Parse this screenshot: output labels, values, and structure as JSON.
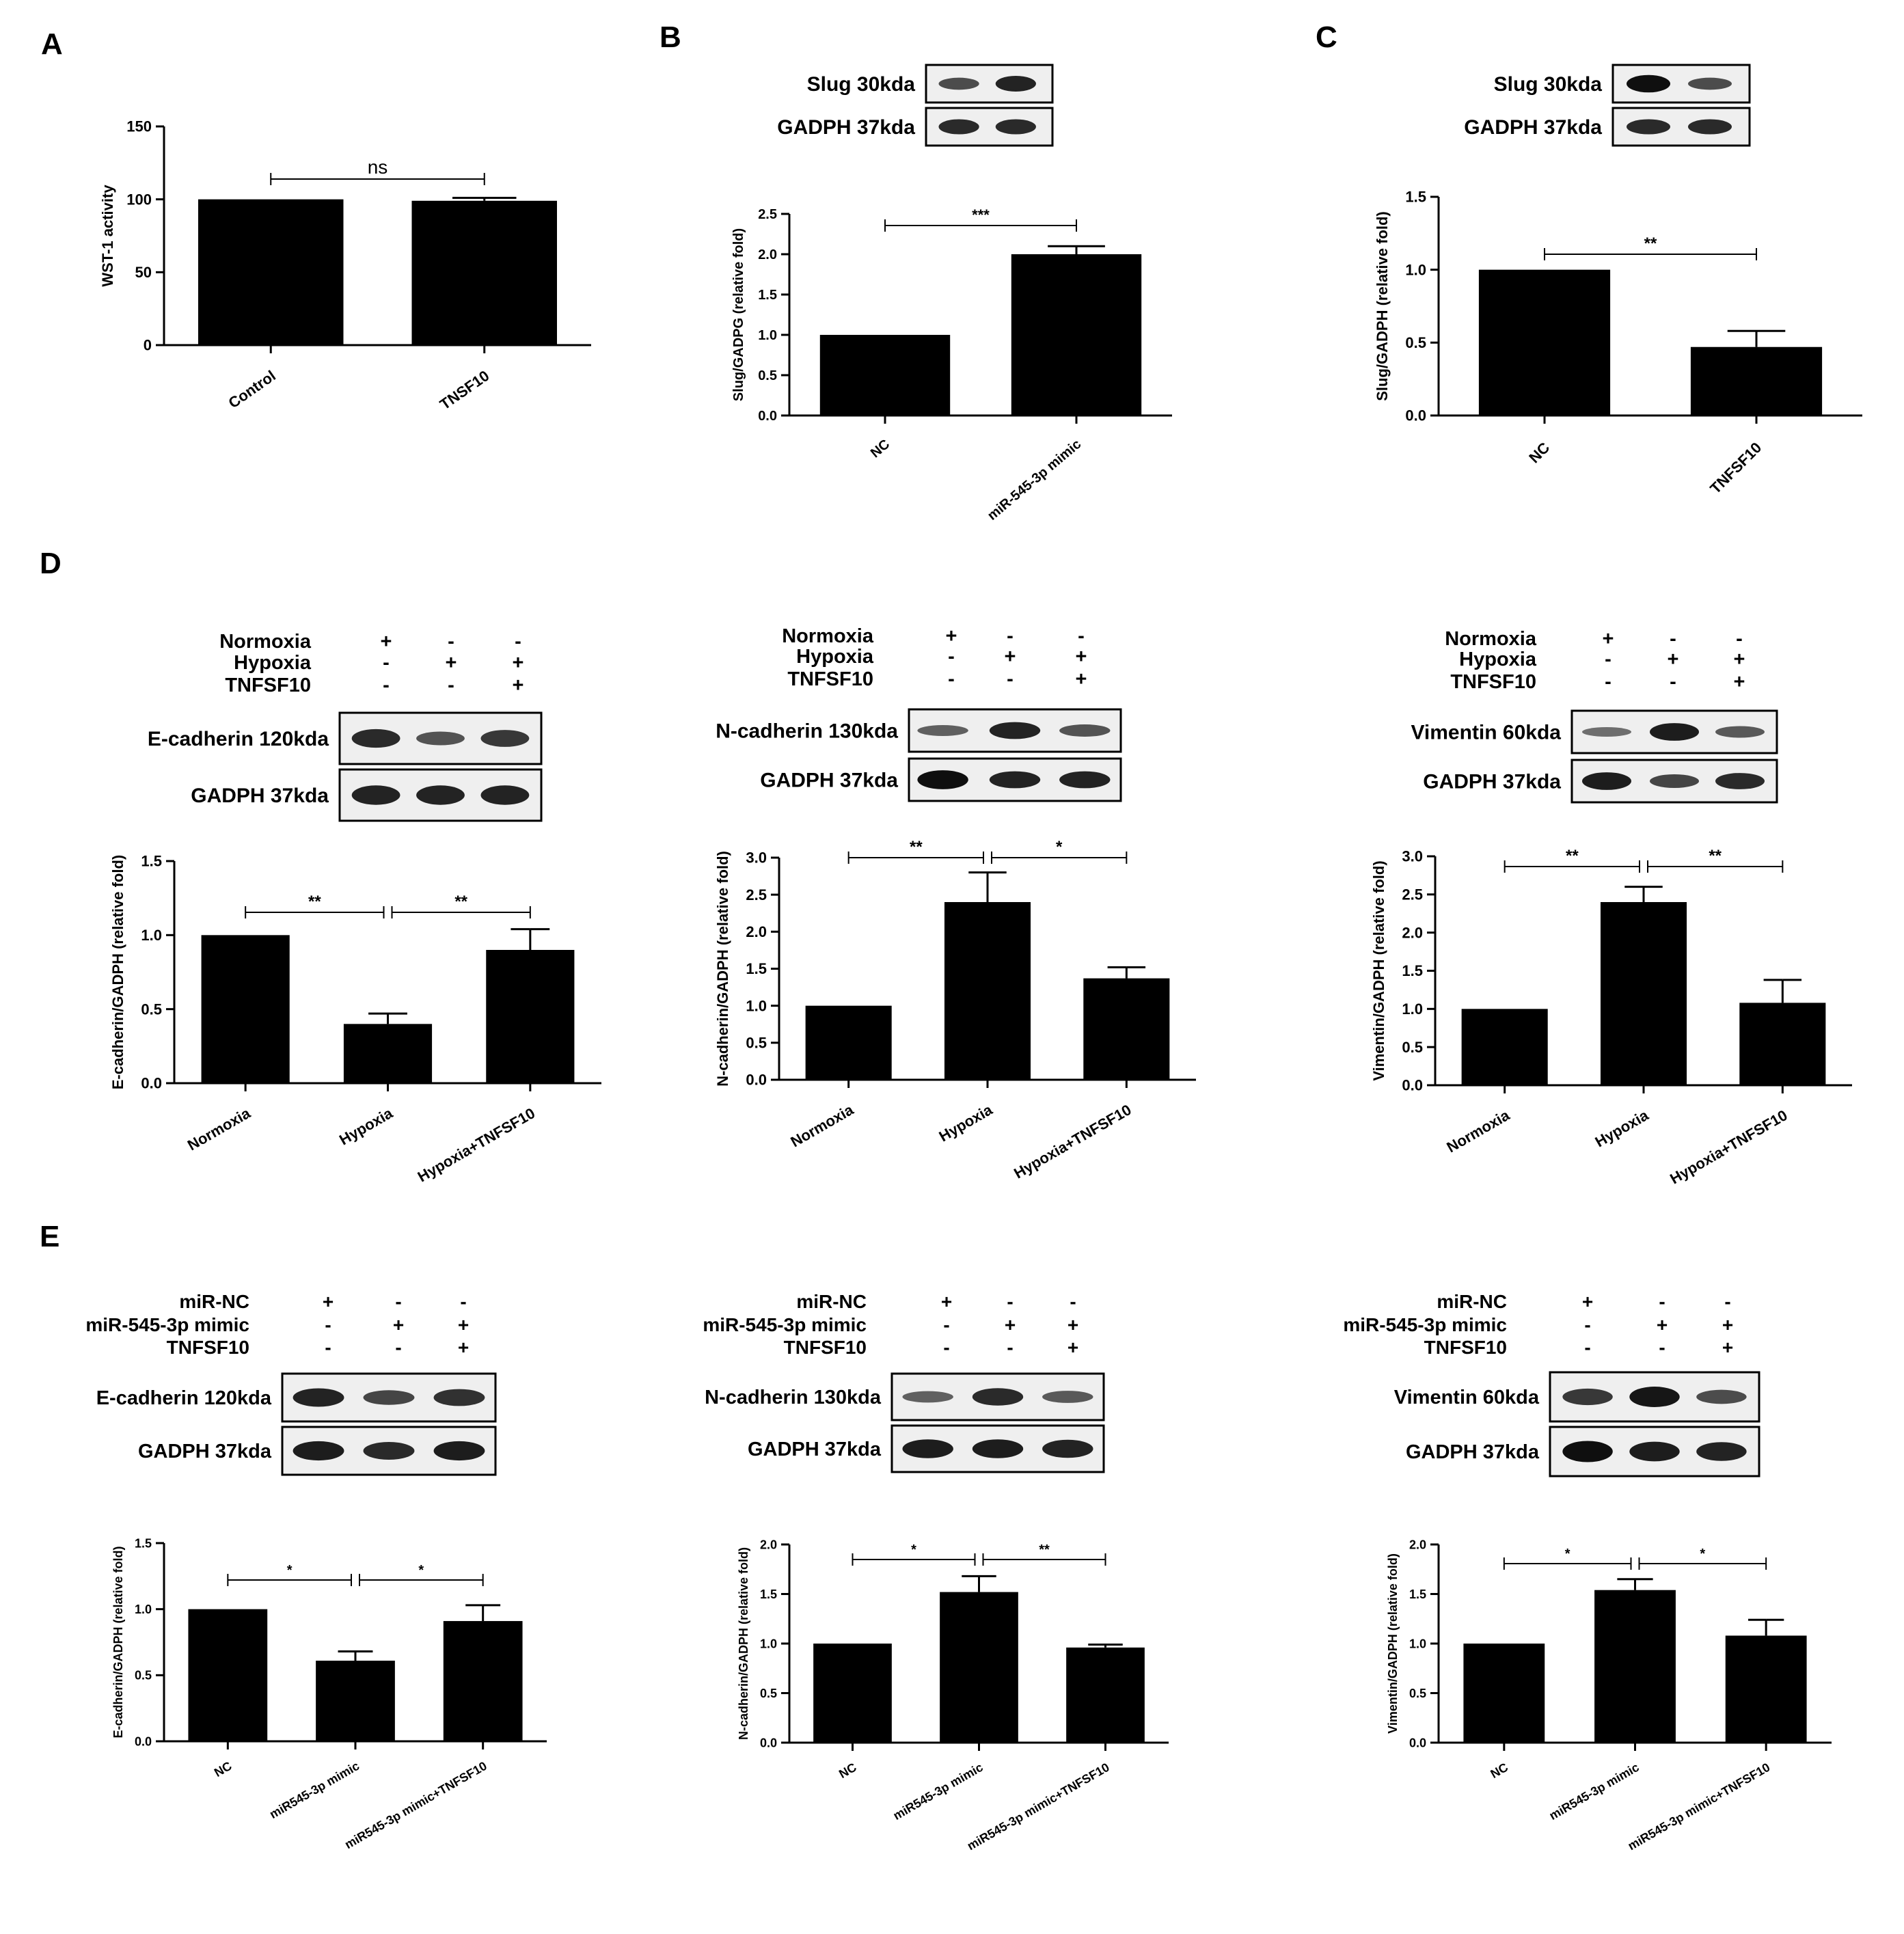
{
  "panels": {
    "A": "A",
    "B": "B",
    "C": "C",
    "D": "D",
    "E": "E"
  },
  "blots": [
    {
      "bands": [
        {
          "label": "Slug 30kda",
          "intensity": [
            0.55,
            0.85
          ]
        },
        {
          "label": "GADPH  37kda",
          "intensity": [
            0.8,
            0.8
          ]
        }
      ],
      "treatments": []
    },
    {
      "bands": [
        {
          "label": "Slug 30kda",
          "intensity": [
            1.0,
            0.55
          ]
        },
        {
          "label": "GADPH  37kda",
          "intensity": [
            0.8,
            0.8
          ]
        }
      ],
      "treatments": []
    },
    {
      "bands": [
        {
          "label": "E-cadherin  120kda",
          "intensity": [
            0.8,
            0.5,
            0.7
          ]
        },
        {
          "label": "GADPH  37kda",
          "intensity": [
            0.85,
            0.85,
            0.85
          ]
        }
      ],
      "treatments": [
        {
          "name": "Normoxia",
          "signs": [
            "+",
            "-",
            "-"
          ]
        },
        {
          "name": "Hypoxia",
          "signs": [
            "-",
            "+",
            "+"
          ]
        },
        {
          "name": "TNFSF10",
          "signs": [
            "-",
            "-",
            "+"
          ]
        }
      ]
    },
    {
      "bands": [
        {
          "label": "N-cadherin  130kda",
          "intensity": [
            0.4,
            0.85,
            0.5
          ]
        },
        {
          "label": "GADPH  37kda",
          "intensity": [
            1.0,
            0.85,
            0.85
          ]
        }
      ],
      "treatments": [
        {
          "name": "Normoxia",
          "signs": [
            "+",
            "-",
            "-"
          ]
        },
        {
          "name": "Hypoxia",
          "signs": [
            "-",
            "+",
            "+"
          ]
        },
        {
          "name": "TNFSF10",
          "signs": [
            "-",
            "-",
            "+"
          ]
        }
      ]
    },
    {
      "bands": [
        {
          "label": "Vimentin  60kda",
          "intensity": [
            0.3,
            0.9,
            0.45
          ]
        },
        {
          "label": "GADPH  37kda",
          "intensity": [
            0.9,
            0.6,
            0.8
          ]
        }
      ],
      "treatments": [
        {
          "name": "Normoxia",
          "signs": [
            "+",
            "-",
            "-"
          ]
        },
        {
          "name": "Hypoxia",
          "signs": [
            "-",
            "+",
            "+"
          ]
        },
        {
          "name": "TNFSF10",
          "signs": [
            "-",
            "-",
            "+"
          ]
        }
      ]
    },
    {
      "bands": [
        {
          "label": "E-cadherin  120kda",
          "intensity": [
            0.85,
            0.6,
            0.75
          ]
        },
        {
          "label": "GADPH  37kda",
          "intensity": [
            0.9,
            0.8,
            0.9
          ]
        }
      ],
      "treatments": [
        {
          "name": "miR-NC",
          "signs": [
            "+",
            "-",
            "-"
          ]
        },
        {
          "name": "miR-545-3p mimic",
          "signs": [
            "-",
            "+",
            "+"
          ]
        },
        {
          "name": "TNFSF10",
          "signs": [
            "-",
            "-",
            "+"
          ]
        }
      ]
    },
    {
      "bands": [
        {
          "label": "N-cadherin  130kda",
          "intensity": [
            0.4,
            0.8,
            0.45
          ]
        },
        {
          "label": "GADPH  37kda",
          "intensity": [
            0.9,
            0.9,
            0.85
          ]
        }
      ],
      "treatments": [
        {
          "name": "miR-NC",
          "signs": [
            "+",
            "-",
            "-"
          ]
        },
        {
          "name": "miR-545-3p mimic",
          "signs": [
            "-",
            "+",
            "+"
          ]
        },
        {
          "name": "TNFSF10",
          "signs": [
            "-",
            "-",
            "+"
          ]
        }
      ]
    },
    {
      "bands": [
        {
          "label": "Vimentin  60kda",
          "intensity": [
            0.7,
            0.95,
            0.55
          ]
        },
        {
          "label": "GADPH  37kda",
          "intensity": [
            1.0,
            0.9,
            0.85
          ]
        }
      ],
      "treatments": [
        {
          "name": "miR-NC",
          "signs": [
            "+",
            "-",
            "-"
          ]
        },
        {
          "name": "miR-545-3p mimic",
          "signs": [
            "-",
            "+",
            "+"
          ]
        },
        {
          "name": "TNFSF10",
          "signs": [
            "-",
            "-",
            "+"
          ]
        }
      ]
    }
  ],
  "chart_data": [
    {
      "panel": "A",
      "type": "bar",
      "categories": [
        "Control",
        "TNSF10"
      ],
      "values": [
        100,
        99
      ],
      "errors": [
        0,
        2
      ],
      "ylabel": "WST-1 activity",
      "ylim": [
        0,
        150
      ],
      "yticks": [
        "0",
        "50",
        "100",
        "150"
      ],
      "significance": [
        {
          "from": 0,
          "to": 1,
          "label": "ns"
        }
      ]
    },
    {
      "panel": "B",
      "type": "bar",
      "categories": [
        "NC",
        "miR-545-3p mimic"
      ],
      "values": [
        1.0,
        2.0
      ],
      "errors": [
        0,
        0.1
      ],
      "ylabel": "Slug/GADPG (relative fold)",
      "ylim": [
        0,
        2.5
      ],
      "yticks": [
        "0.0",
        "0.5",
        "1.0",
        "1.5",
        "2.0",
        "2.5"
      ],
      "significance": [
        {
          "from": 0,
          "to": 1,
          "label": "***"
        }
      ]
    },
    {
      "panel": "C",
      "type": "bar",
      "categories": [
        "NC",
        "TNFSF10"
      ],
      "values": [
        1.0,
        0.47
      ],
      "errors": [
        0,
        0.11
      ],
      "ylabel": "Slug/GADPH (relative fold)",
      "ylim": [
        0,
        1.5
      ],
      "yticks": [
        "0.0",
        "0.5",
        "1.0",
        "1.5"
      ],
      "significance": [
        {
          "from": 0,
          "to": 1,
          "label": "**"
        }
      ]
    },
    {
      "panel": "D",
      "type": "bar",
      "categories": [
        "Normoxia",
        "Hypoxia",
        "Hypoxia+TNFSF10"
      ],
      "values": [
        1.0,
        0.4,
        0.9
      ],
      "errors": [
        0,
        0.07,
        0.14
      ],
      "ylabel": "E-cadherin/GADPH (relative fold)",
      "ylim": [
        0,
        1.5
      ],
      "yticks": [
        "0.0",
        "0.5",
        "1.0",
        "1.5"
      ],
      "significance": [
        {
          "from": 0,
          "to": 1,
          "label": "**"
        },
        {
          "from": 1,
          "to": 2,
          "label": "**"
        }
      ]
    },
    {
      "panel": "D",
      "type": "bar",
      "categories": [
        "Normoxia",
        "Hypoxia",
        "Hypoxia+TNFSF10"
      ],
      "values": [
        1.0,
        2.4,
        1.37
      ],
      "errors": [
        0,
        0.4,
        0.15
      ],
      "ylabel": "N-cadherin/GADPH (relative fold)",
      "ylim": [
        0,
        3.0
      ],
      "yticks": [
        "0.0",
        "0.5",
        "1.0",
        "1.5",
        "2.0",
        "2.5",
        "3.0"
      ],
      "significance": [
        {
          "from": 0,
          "to": 1,
          "label": "**"
        },
        {
          "from": 1,
          "to": 2,
          "label": "*"
        }
      ]
    },
    {
      "panel": "D",
      "type": "bar",
      "categories": [
        "Normoxia",
        "Hypoxia",
        "Hypoxia+TNFSF10"
      ],
      "values": [
        1.0,
        2.4,
        1.08
      ],
      "errors": [
        0,
        0.2,
        0.3
      ],
      "ylabel": "Vimentin/GADPH (relative fold)",
      "ylim": [
        0,
        3.0
      ],
      "yticks": [
        "0.0",
        "0.5",
        "1.0",
        "1.5",
        "2.0",
        "2.5",
        "3.0"
      ],
      "significance": [
        {
          "from": 0,
          "to": 1,
          "label": "**"
        },
        {
          "from": 1,
          "to": 2,
          "label": "**"
        }
      ]
    },
    {
      "panel": "E",
      "type": "bar",
      "categories": [
        "NC",
        "miR545-3p mimic",
        "miR545-3p mimic+TNFSF10"
      ],
      "values": [
        1.0,
        0.61,
        0.91
      ],
      "errors": [
        0,
        0.07,
        0.12
      ],
      "ylabel": "E-cadherin/GADPH (relative fold)",
      "ylim": [
        0,
        1.5
      ],
      "yticks": [
        "0.0",
        "0.5",
        "1.0",
        "1.5"
      ],
      "significance": [
        {
          "from": 0,
          "to": 1,
          "label": "*"
        },
        {
          "from": 1,
          "to": 2,
          "label": "*"
        }
      ]
    },
    {
      "panel": "E",
      "type": "bar",
      "categories": [
        "NC",
        "miR545-3p mimic",
        "miR545-3p mimic+TNFSF10"
      ],
      "values": [
        1.0,
        1.52,
        0.96
      ],
      "errors": [
        0,
        0.16,
        0.03
      ],
      "ylabel": "N-cadherin/GADPH (relative fold)",
      "ylim": [
        0,
        2.0
      ],
      "yticks": [
        "0.0",
        "0.5",
        "1.0",
        "1.5",
        "2.0"
      ],
      "significance": [
        {
          "from": 0,
          "to": 1,
          "label": "*"
        },
        {
          "from": 1,
          "to": 2,
          "label": "**"
        }
      ]
    },
    {
      "panel": "E",
      "type": "bar",
      "categories": [
        "NC",
        "miR545-3p mimic",
        "miR545-3p mimic+TNFSF10"
      ],
      "values": [
        1.0,
        1.54,
        1.08
      ],
      "errors": [
        0,
        0.11,
        0.16
      ],
      "ylabel": "Vimentin/GADPH (relative fold)",
      "ylim": [
        0,
        2.0
      ],
      "yticks": [
        "0.0",
        "0.5",
        "1.0",
        "1.5",
        "2.0"
      ],
      "significance": [
        {
          "from": 0,
          "to": 1,
          "label": "*"
        },
        {
          "from": 1,
          "to": 2,
          "label": "*"
        }
      ]
    }
  ]
}
